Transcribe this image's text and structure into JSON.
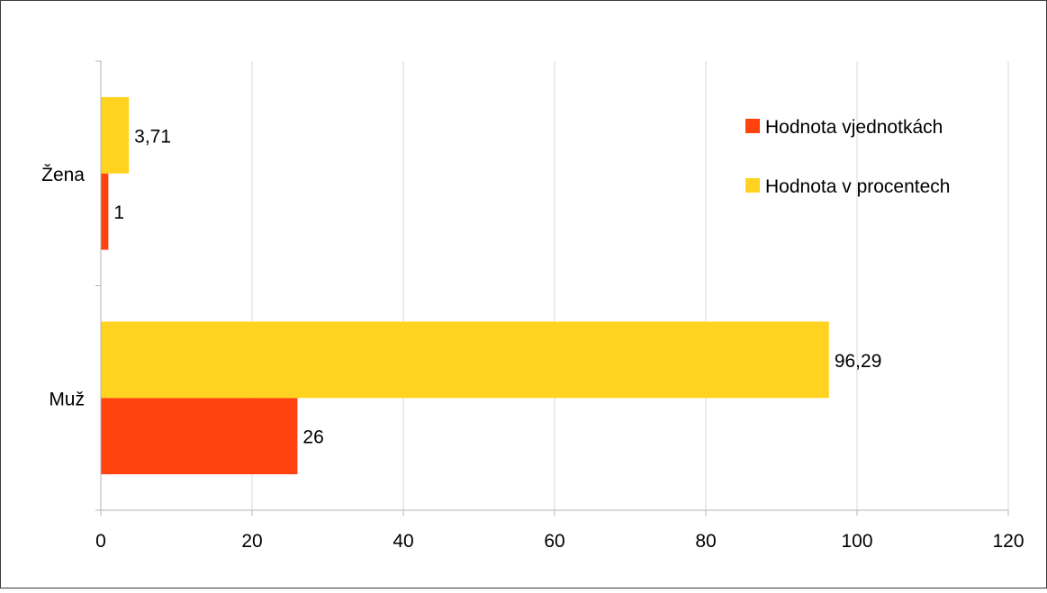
{
  "chart_data": {
    "type": "bar",
    "orientation": "horizontal",
    "categories": [
      "Žena",
      "Muž"
    ],
    "series": [
      {
        "name": "Hodnota vjednotkách",
        "color": "#ff420e",
        "values": [
          1,
          26
        ],
        "value_labels": [
          "1",
          "26"
        ]
      },
      {
        "name": "Hodnota v procentech",
        "color": "#ffd320",
        "values": [
          3.71,
          96.29
        ],
        "value_labels": [
          "3,71",
          "96,29"
        ]
      }
    ],
    "title": "",
    "xlabel": "",
    "ylabel": "",
    "xlim": [
      0,
      120
    ],
    "x_ticks": [
      0,
      20,
      40,
      60,
      80,
      100,
      120
    ],
    "x_tick_labels": [
      "0",
      "20",
      "40",
      "60",
      "80",
      "100",
      "120"
    ],
    "grid": true,
    "legend_position": "top-right"
  }
}
